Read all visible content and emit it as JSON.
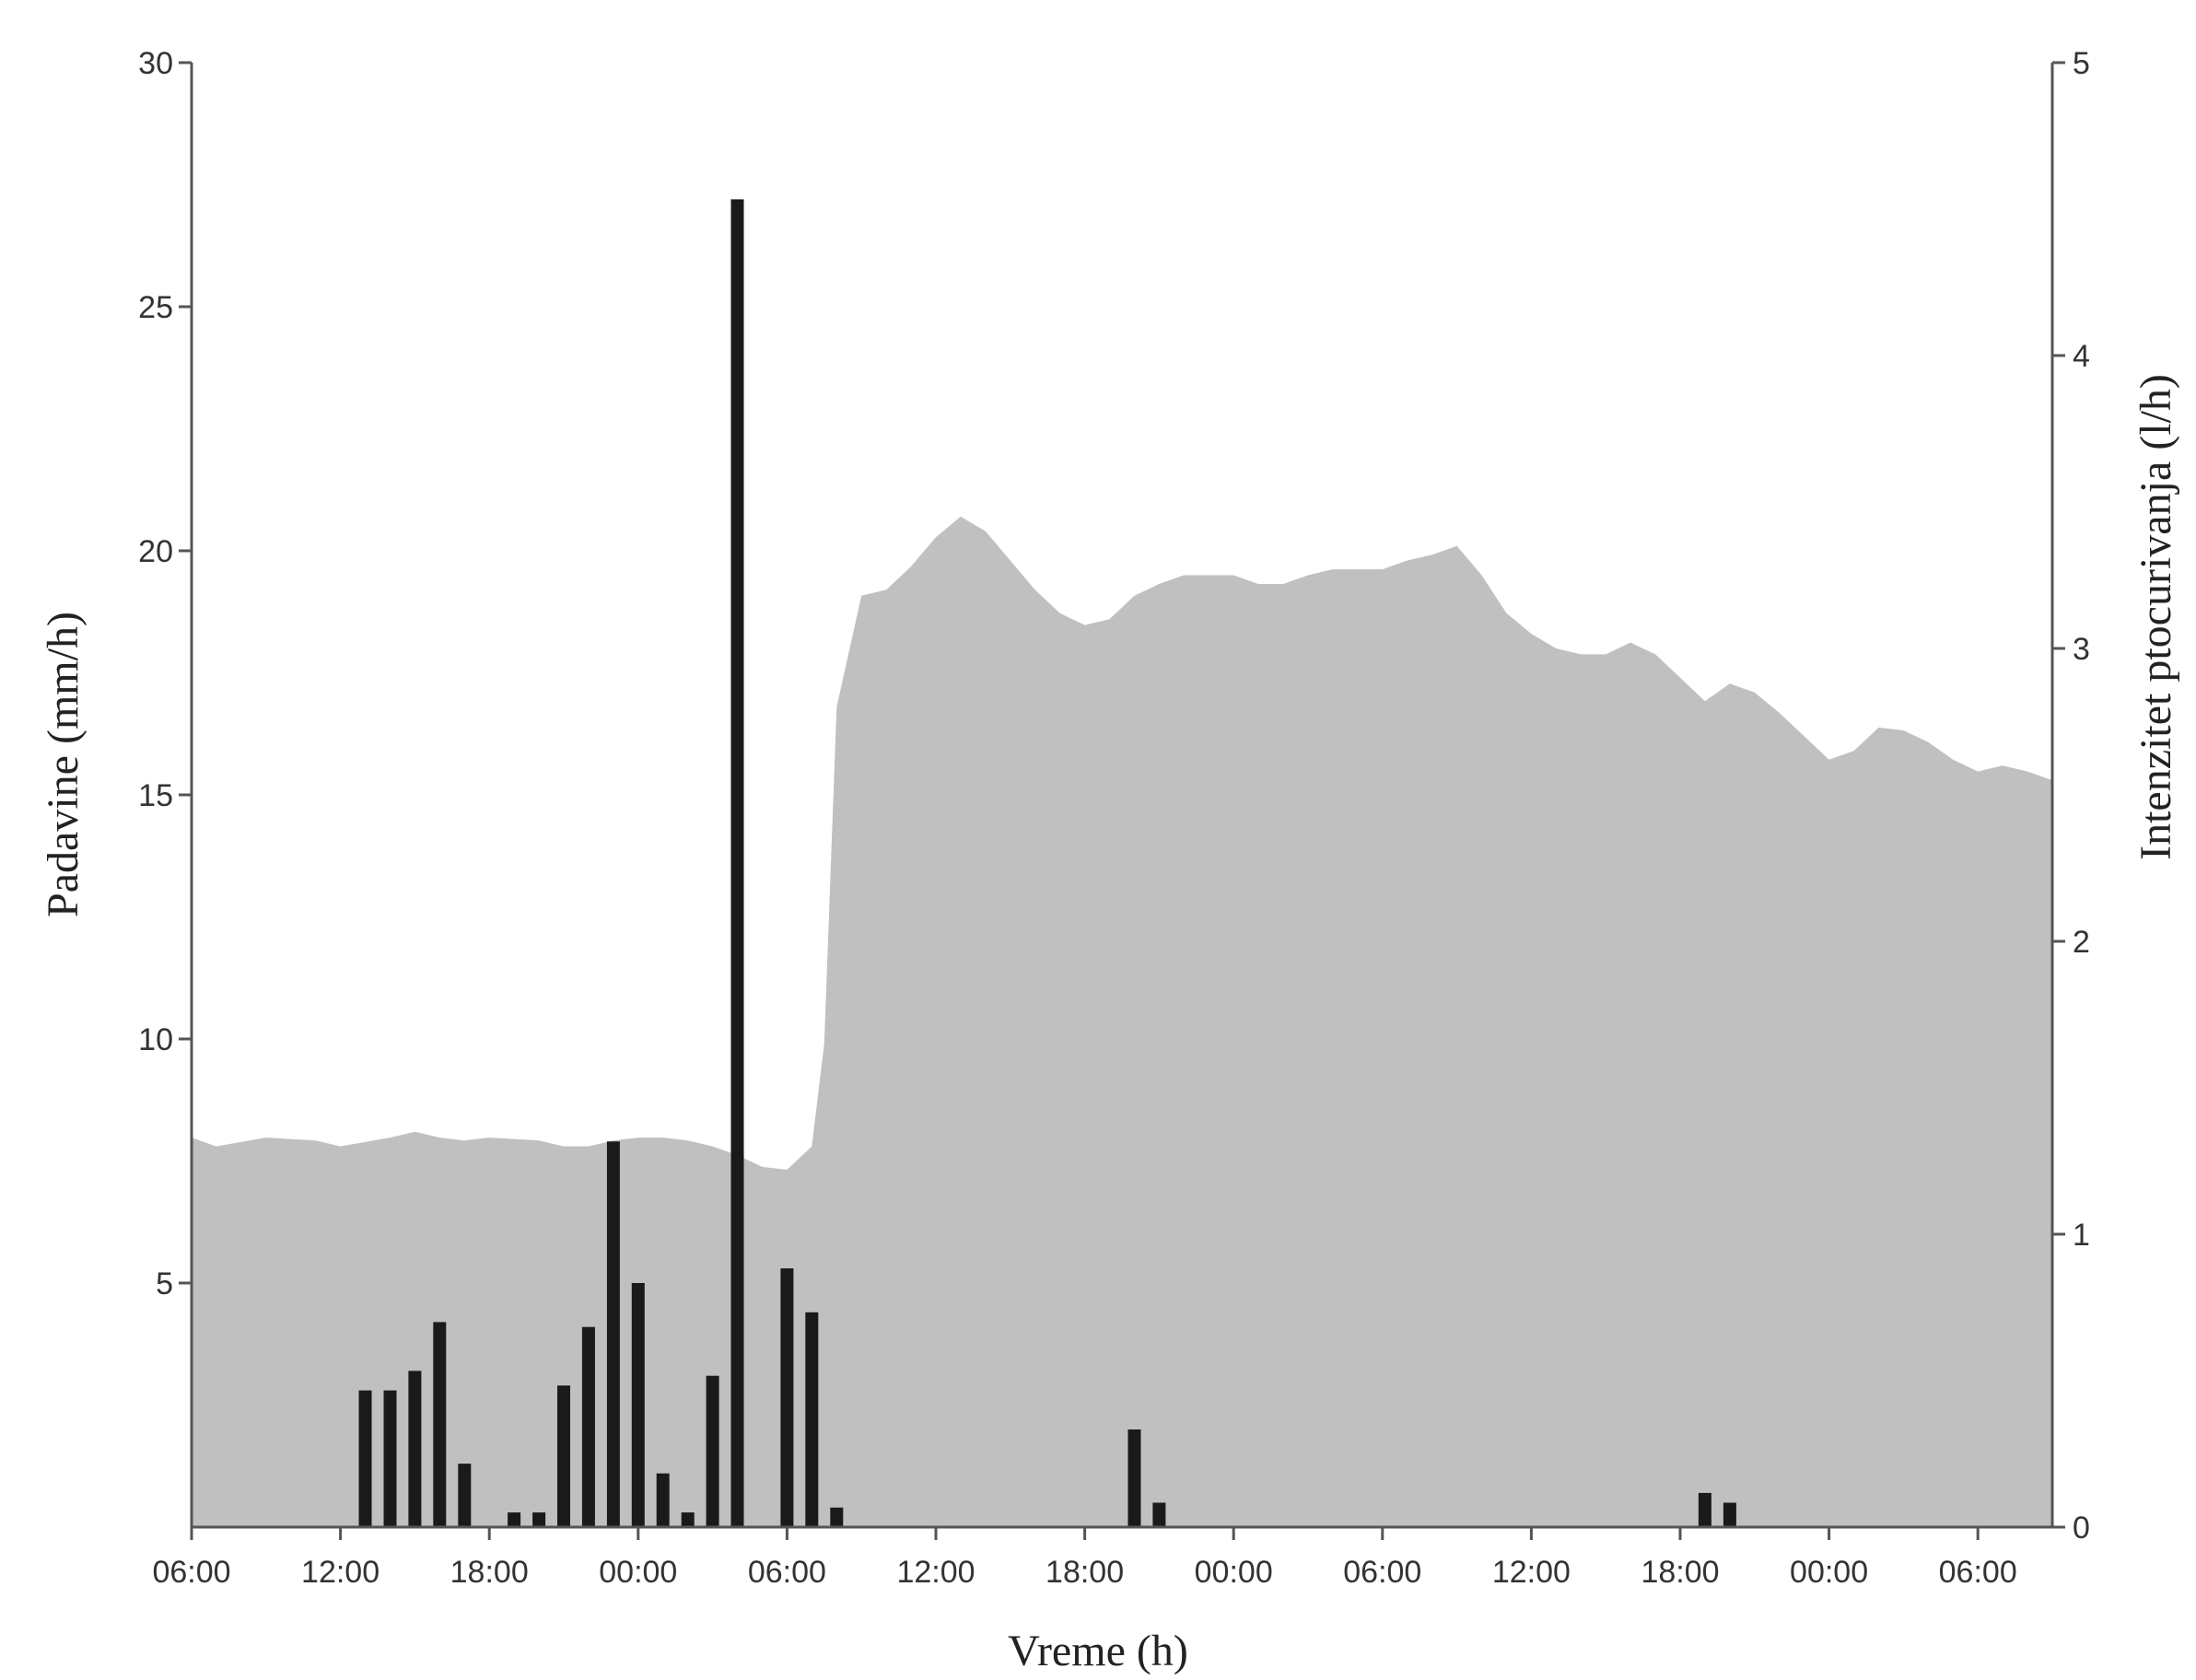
{
  "chart_data": {
    "type": "bar",
    "title": "",
    "xlabel": "Vreme (h)",
    "ylabel": "Padavine (mm/h)",
    "y2label": "Intenzitet ptocurivanja (l/h)",
    "xlim": [
      0,
      75
    ],
    "ylim": [
      0,
      30
    ],
    "y2lim": [
      0,
      5
    ],
    "x_ticks": [
      "06:00",
      "12:00",
      "18:00",
      "00:00",
      "06:00",
      "12:00",
      "18:00",
      "00:00",
      "06:00",
      "12:00",
      "18:00",
      "00:00",
      "06:00"
    ],
    "y_ticks": [
      0,
      5,
      10,
      15,
      20,
      25,
      30
    ],
    "y2_ticks": [
      0,
      1,
      2,
      3,
      4,
      5
    ],
    "grid": false,
    "legend": "none",
    "series": [
      {
        "type": "bar",
        "axis": "left",
        "color": "#1a1a1a",
        "x": [
          7,
          8,
          9,
          10,
          11,
          13,
          14,
          15,
          16,
          17,
          18,
          19,
          20,
          21,
          22,
          24,
          25,
          26,
          27,
          30,
          38,
          39,
          61,
          62
        ],
        "values": [
          2.8,
          2.8,
          3.2,
          4.2,
          1.3,
          0.3,
          0.3,
          2.9,
          4.1,
          7.9,
          5.0,
          1.1,
          0.3,
          3.1,
          27.2,
          5.3,
          4.4,
          0.4,
          0,
          0,
          2.0,
          0.5,
          0.7,
          0.5
        ]
      },
      {
        "type": "area",
        "axis": "right",
        "color": "#c0c0c0",
        "x": [
          0,
          1,
          3,
          5,
          6,
          8,
          9,
          10,
          11,
          12,
          14,
          15,
          16,
          17,
          18,
          19,
          20,
          21,
          22,
          23,
          24,
          25,
          25.5,
          26,
          27,
          28,
          29,
          30,
          31,
          32,
          33,
          34,
          35,
          36,
          37,
          38,
          39,
          40,
          41,
          42,
          43,
          44,
          45,
          46,
          47,
          48,
          49,
          50,
          51,
          52,
          53,
          54,
          55,
          56,
          57,
          58,
          59,
          60,
          61,
          62,
          63,
          64,
          65,
          66,
          67,
          68,
          69,
          70,
          71,
          72,
          73,
          74,
          75
        ],
        "values": [
          1.33,
          1.3,
          1.33,
          1.32,
          1.3,
          1.33,
          1.35,
          1.33,
          1.32,
          1.33,
          1.32,
          1.3,
          1.3,
          1.32,
          1.33,
          1.33,
          1.32,
          1.3,
          1.27,
          1.23,
          1.22,
          1.3,
          1.65,
          2.8,
          3.18,
          3.2,
          3.28,
          3.38,
          3.45,
          3.4,
          3.3,
          3.2,
          3.12,
          3.08,
          3.1,
          3.18,
          3.22,
          3.25,
          3.25,
          3.25,
          3.22,
          3.22,
          3.25,
          3.27,
          3.27,
          3.27,
          3.3,
          3.32,
          3.35,
          3.25,
          3.12,
          3.05,
          3.0,
          2.98,
          2.98,
          3.02,
          2.98,
          2.9,
          2.82,
          2.88,
          2.85,
          2.78,
          2.7,
          2.62,
          2.65,
          2.73,
          2.72,
          2.68,
          2.62,
          2.58,
          2.6,
          2.58,
          2.55
        ]
      }
    ]
  }
}
